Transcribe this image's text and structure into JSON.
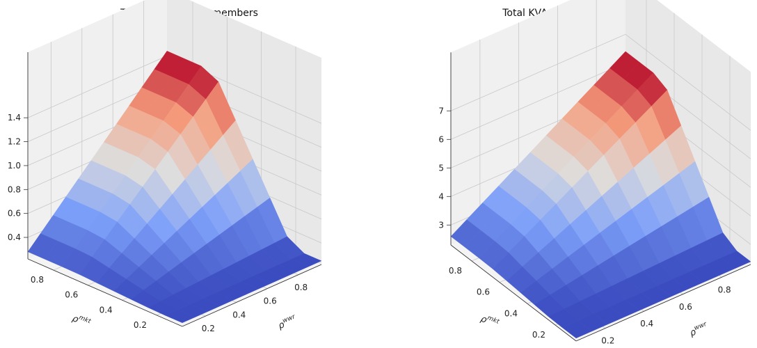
{
  "chart_data": [
    {
      "type": "surface",
      "title": "Total CCVA overall members",
      "xlabel": "ρ^wwr",
      "ylabel": "ρ^mkt",
      "xticks": [
        0.2,
        0.4,
        0.6,
        0.8
      ],
      "yticks": [
        0.8,
        0.6,
        0.4,
        0.2
      ],
      "zticks": [
        0.4,
        0.6,
        0.8,
        1.0,
        1.2,
        1.4
      ],
      "xlim": [
        0.05,
        0.95
      ],
      "ylim": [
        0.05,
        0.95
      ],
      "zlim": [
        0.22,
        1.5
      ],
      "colormap": "coolwarm",
      "grid": true,
      "z_model": {
        "floor": 0.25,
        "ridge_start": 0.28,
        "ridge_end": 1.44,
        "knee_x": 0.22,
        "valley_dips": true
      }
    },
    {
      "type": "surface",
      "title": "Total KVA overall members",
      "xlabel": "ρ^wwr",
      "ylabel": "ρ^mkt",
      "xticks": [
        0.2,
        0.4,
        0.6,
        0.8
      ],
      "yticks": [
        0.8,
        0.6,
        0.4,
        0.2
      ],
      "zticks": [
        3,
        4,
        5,
        6,
        7
      ],
      "xlim": [
        0.05,
        0.95
      ],
      "ylim": [
        0.05,
        0.95
      ],
      "zlim": [
        2.3,
        7.3
      ],
      "colormap": "coolwarm",
      "grid": true,
      "z_model": {
        "floor": 2.4,
        "ridge_start": 2.6,
        "ridge_end": 6.4,
        "knee_x": 0.22,
        "valley_dips": true
      }
    }
  ]
}
